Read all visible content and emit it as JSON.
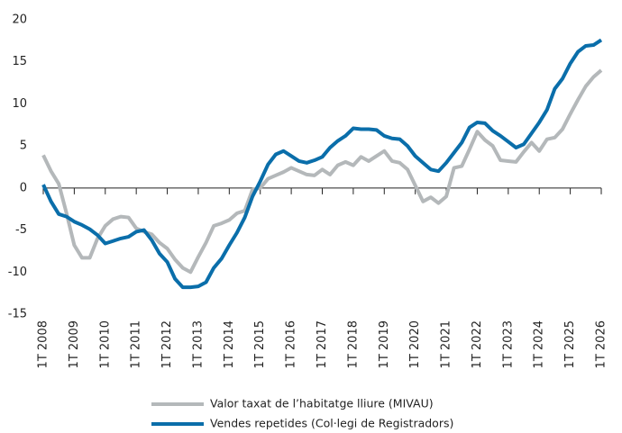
{
  "chart_data": {
    "type": "line",
    "categories": [
      "1T 2008",
      null,
      null,
      null,
      "1T 2009",
      null,
      null,
      null,
      "1T 2010",
      null,
      null,
      null,
      "1T 2011",
      null,
      null,
      null,
      "1T 2012",
      null,
      null,
      null,
      "1T 2013",
      null,
      null,
      null,
      "1T 2014",
      null,
      null,
      null,
      "1T 2015",
      null,
      null,
      null,
      "1T 2016",
      null,
      null,
      null,
      "1T 2017",
      null,
      null,
      null,
      "1T 2018",
      null,
      null,
      null,
      "1T 2019",
      null,
      null,
      null,
      "1T 2020",
      null,
      null,
      null,
      "1T 2021",
      null,
      null,
      null,
      "1T 2022",
      null,
      null,
      null,
      "1T 2023",
      null,
      null,
      null,
      "1T 2024",
      null,
      null,
      null,
      "1T 2025",
      null,
      null,
      null,
      "1T 2026"
    ],
    "series": [
      {
        "name": "Valor taxat de l’habitatge lliure (MIVAU)",
        "color": "#b4b8ba",
        "values": [
          3.9,
          2.0,
          0.5,
          -3.0,
          -6.8,
          -8.3,
          -8.3,
          -6.0,
          -4.5,
          -3.7,
          -3.4,
          -3.5,
          -4.8,
          -5.2,
          -5.5,
          -6.5,
          -7.2,
          -8.5,
          -9.5,
          -10.0,
          -8.2,
          -6.5,
          -4.5,
          -4.2,
          -3.8,
          -3.0,
          -2.7,
          -0.2,
          0.0,
          1.1,
          1.5,
          1.9,
          2.4,
          2.0,
          1.6,
          1.5,
          2.2,
          1.6,
          2.7,
          3.1,
          2.7,
          3.7,
          3.2,
          3.8,
          4.4,
          3.2,
          3.0,
          2.2,
          0.3,
          -1.6,
          -1.1,
          -1.8,
          -1.0,
          2.4,
          2.6,
          4.6,
          6.7,
          5.7,
          5.0,
          3.3,
          3.2,
          3.1,
          4.3,
          5.4,
          4.4,
          5.8,
          6.0,
          7.0,
          8.8,
          10.5,
          12.1,
          13.2,
          14.0
        ]
      },
      {
        "name": "Vendes repetides (Col·legi de Registradors)",
        "color": "#0a6eaa",
        "values": [
          0.4,
          -1.6,
          -3.1,
          -3.4,
          -4.0,
          -4.4,
          -4.9,
          -5.6,
          -6.6,
          -6.3,
          -6.0,
          -5.8,
          -5.2,
          -5.0,
          -6.2,
          -7.8,
          -8.8,
          -10.8,
          -11.8,
          -11.8,
          -11.7,
          -11.2,
          -9.5,
          -8.4,
          -6.8,
          -5.3,
          -3.5,
          -1.0,
          0.8,
          2.8,
          4.0,
          4.4,
          3.8,
          3.2,
          3.0,
          3.3,
          3.7,
          4.8,
          5.6,
          6.2,
          7.1,
          7.0,
          7.0,
          6.9,
          6.2,
          5.9,
          5.8,
          5.0,
          3.8,
          3.0,
          2.2,
          2.0,
          3.0,
          4.2,
          5.4,
          7.2,
          7.8,
          7.7,
          6.8,
          6.2,
          5.5,
          4.8,
          5.2,
          6.5,
          7.8,
          9.3,
          11.8,
          13.0,
          14.8,
          16.2,
          16.9,
          17.0,
          17.6
        ]
      }
    ],
    "ylim": [
      -15,
      20
    ],
    "yticks": [
      -15,
      -10,
      -5,
      0,
      5,
      10,
      15,
      20
    ],
    "grid": false
  }
}
